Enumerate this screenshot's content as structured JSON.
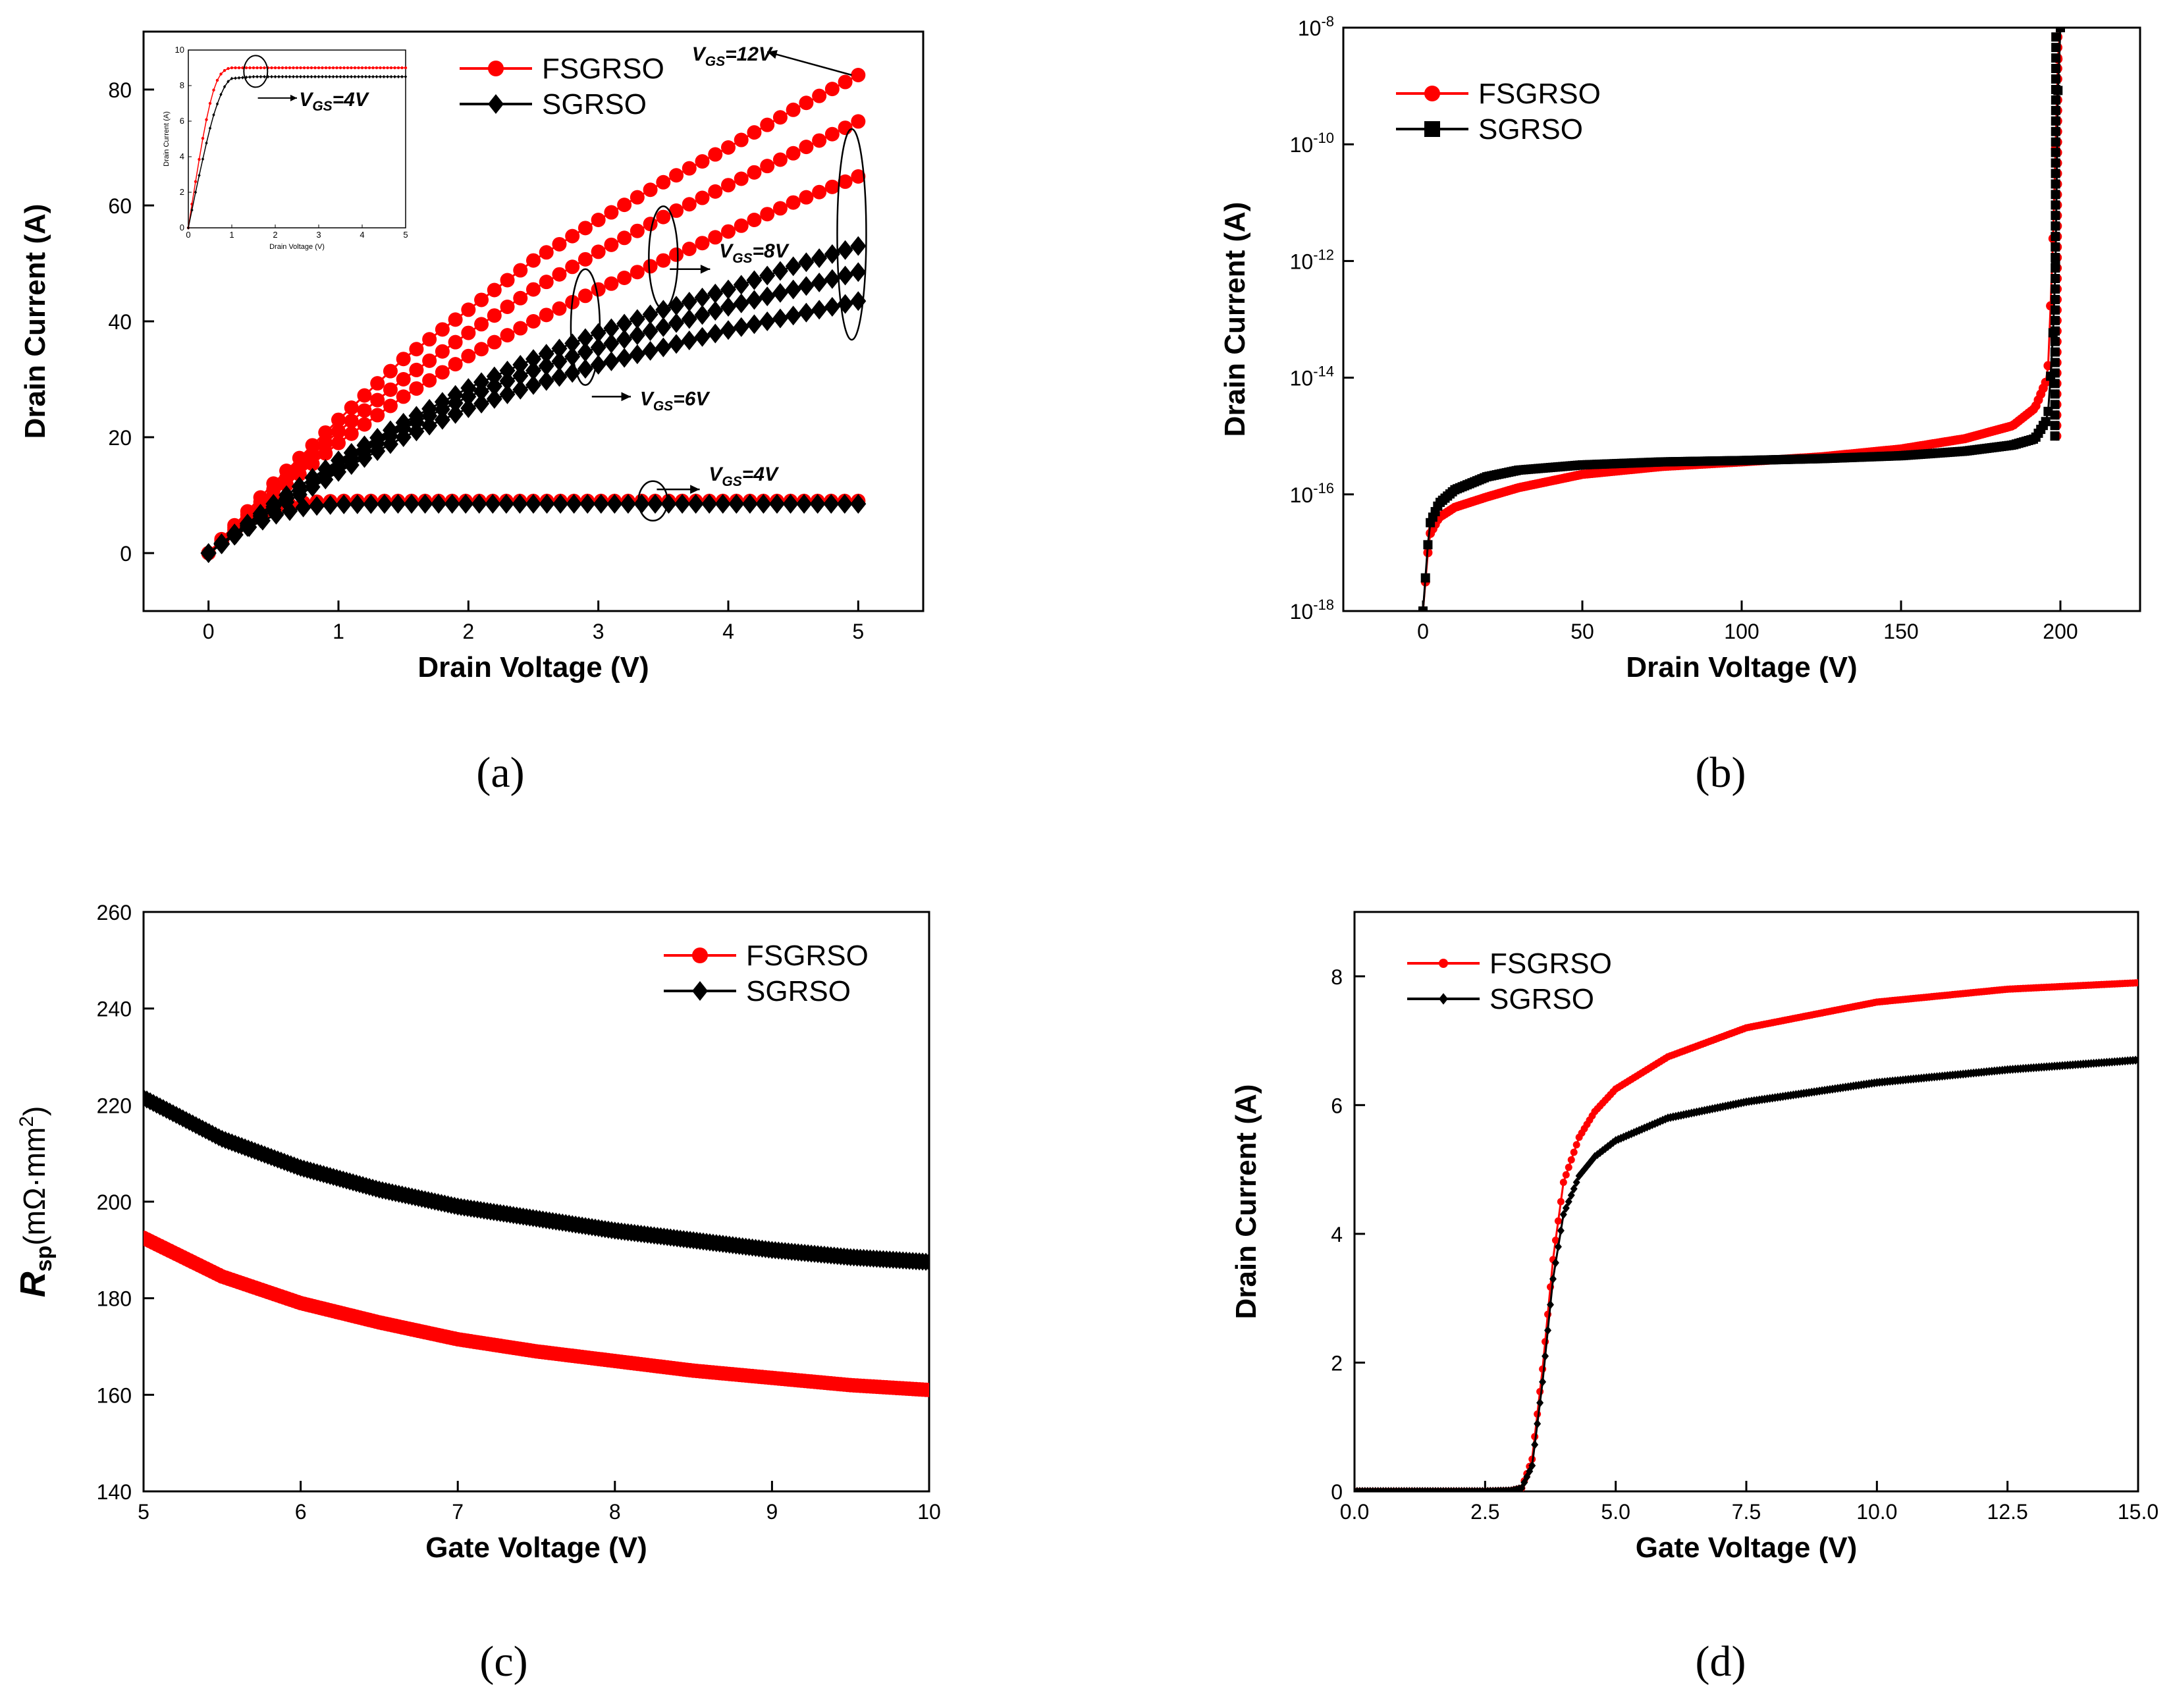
{
  "colors": {
    "fsgrso": "#ff0000",
    "sgrso": "#000000"
  },
  "panel_labels": [
    "(a)",
    "(b)",
    "(c)",
    "(d)"
  ],
  "chart_data": [
    {
      "type": "line",
      "panel": "(a)",
      "xlabel": "Drain Voltage (V)",
      "ylabel": "Drain Current (A)",
      "xlim": [
        -0.5,
        5.5
      ],
      "ylim": [
        -10,
        90
      ],
      "xticks": [
        0,
        1,
        2,
        3,
        4,
        5
      ],
      "yticks": [
        0,
        20,
        40,
        60,
        80
      ],
      "legend": [
        "FSGRSO",
        "SGRSO"
      ],
      "legend_position": "top-center",
      "markers": {
        "FSGRSO": "circle",
        "SGRSO": "diamond"
      },
      "annotations": [
        {
          "main": "V",
          "sub": "GS",
          "rest": "=12V"
        },
        {
          "main": "V",
          "sub": "GS",
          "rest": "=8V"
        },
        {
          "main": "V",
          "sub": "GS",
          "rest": "=6V"
        },
        {
          "main": "V",
          "sub": "GS",
          "rest": "=4V"
        }
      ],
      "series": [
        {
          "name": "FSGRSO",
          "vgs": "12V",
          "x": [
            0,
            0.5,
            1,
            1.5,
            2,
            2.5,
            3,
            3.5,
            4,
            4.5,
            5
          ],
          "y": [
            0,
            12,
            23,
            33.5,
            42,
            50.5,
            57.5,
            64,
            70,
            76.5,
            82.5
          ]
        },
        {
          "name": "FSGRSO",
          "vgs": "8V",
          "x": [
            0,
            0.5,
            1,
            1.5,
            2,
            2.5,
            3,
            3.5,
            4,
            4.5,
            5
          ],
          "y": [
            0,
            11,
            21,
            30,
            38,
            45.5,
            52,
            58,
            63.5,
            69,
            74.5
          ]
        },
        {
          "name": "FSGRSO",
          "vgs": "6V",
          "x": [
            0,
            0.5,
            1,
            1.5,
            2,
            2.5,
            3,
            3.5,
            4,
            4.5,
            5
          ],
          "y": [
            0,
            10,
            19,
            27,
            34,
            40,
            45.5,
            50.5,
            55.5,
            60.5,
            65
          ]
        },
        {
          "name": "FSGRSO",
          "vgs": "4V",
          "x": [
            0,
            0.25,
            0.5,
            0.75,
            1,
            1.5,
            2,
            3,
            4,
            5
          ],
          "y": [
            0,
            4.8,
            7.8,
            8.8,
            9,
            9,
            9,
            9,
            9,
            9
          ]
        },
        {
          "name": "SGRSO",
          "vgs": "12V",
          "x": [
            0,
            0.5,
            1,
            1.5,
            2,
            2.5,
            3,
            3.5,
            4,
            4.5,
            5
          ],
          "y": [
            0,
            8.5,
            16,
            22.5,
            28.5,
            33.5,
            38,
            42,
            45.5,
            49.5,
            53
          ]
        },
        {
          "name": "SGRSO",
          "vgs": "8V",
          "x": [
            0,
            0.5,
            1,
            1.5,
            2,
            2.5,
            3,
            3.5,
            4,
            4.5,
            5
          ],
          "y": [
            0,
            8,
            15,
            21.5,
            27,
            31.5,
            35.5,
            39,
            42.5,
            45.5,
            48.5
          ]
        },
        {
          "name": "SGRSO",
          "vgs": "6V",
          "x": [
            0,
            0.5,
            1,
            1.5,
            2,
            2.5,
            3,
            3.5,
            4,
            4.5,
            5
          ],
          "y": [
            0,
            7.5,
            14,
            20,
            25,
            29,
            32.5,
            35.5,
            38.5,
            41,
            43.5
          ]
        },
        {
          "name": "SGRSO",
          "vgs": "4V",
          "x": [
            0,
            0.25,
            0.5,
            0.75,
            1,
            1.5,
            2,
            3,
            4,
            5
          ],
          "y": [
            0,
            3.8,
            6.5,
            8,
            8.4,
            8.5,
            8.5,
            8.5,
            8.5,
            8.5
          ]
        }
      ],
      "inset": {
        "xlabel": "Drain Voltage (V)",
        "ylabel": "Drain Current (A)",
        "xlim": [
          0,
          5
        ],
        "ylim": [
          0,
          10
        ],
        "xticks": [
          0,
          1,
          2,
          3,
          4,
          5
        ],
        "yticks": [
          0,
          2,
          4,
          6,
          8,
          10
        ],
        "annotation": {
          "main": "V",
          "sub": "GS",
          "rest": "=4V"
        },
        "series": [
          {
            "name": "FSGRSO",
            "x": [
              0,
              0.1,
              0.2,
              0.3,
              0.4,
              0.5,
              0.6,
              0.7,
              0.8,
              0.9,
              1,
              1.5,
              2,
              3,
              4,
              5
            ],
            "y": [
              0,
              1.6,
              3.1,
              4.6,
              5.9,
              7,
              7.9,
              8.5,
              8.8,
              8.95,
              9,
              9,
              9,
              9,
              9,
              9
            ]
          },
          {
            "name": "SGRSO",
            "x": [
              0,
              0.1,
              0.2,
              0.3,
              0.4,
              0.5,
              0.6,
              0.7,
              0.8,
              0.9,
              1,
              1.5,
              2,
              3,
              4,
              5
            ],
            "y": [
              0,
              1.2,
              2.4,
              3.5,
              4.6,
              5.6,
              6.5,
              7.2,
              7.8,
              8.2,
              8.4,
              8.5,
              8.5,
              8.5,
              8.5,
              8.5
            ]
          }
        ]
      }
    },
    {
      "type": "line",
      "panel": "(b)",
      "xlabel": "Drain Voltage (V)",
      "ylabel": "Drain Current (A)",
      "yscale": "log",
      "xlim": [
        -25,
        225
      ],
      "ylim": [
        1e-18,
        1e-08
      ],
      "xticks": [
        0,
        50,
        100,
        150,
        200
      ],
      "ytick_exponents": [
        -18,
        -16,
        -14,
        -12,
        -10,
        -8
      ],
      "legend": [
        "FSGRSO",
        "SGRSO"
      ],
      "legend_position": "top-left",
      "markers": {
        "FSGRSO": "circle",
        "SGRSO": "square"
      },
      "series": [
        {
          "name": "FSGRSO",
          "x": [
            0,
            2,
            5,
            10,
            20,
            30,
            50,
            75,
            100,
            125,
            150,
            170,
            185,
            192,
            196,
            197.5,
            198.5,
            199,
            199.5,
            200
          ],
          "y": [
            1e-18,
            2e-17,
            4e-17,
            6e-17,
            9e-17,
            1.3e-16,
            2.2e-16,
            3e-16,
            3.6e-16,
            4.4e-16,
            6e-16,
            9e-16,
            1.5e-15,
            3e-15,
            1e-14,
            1e-12,
            1e-10,
            1e-09,
            1e-08,
            1e-08
          ]
        },
        {
          "name": "SGRSO",
          "x": [
            0,
            2,
            5,
            10,
            20,
            30,
            50,
            75,
            100,
            125,
            150,
            170,
            185,
            192,
            196,
            197.5,
            198.5,
            199,
            199.5,
            200
          ],
          "y": [
            1e-18,
            3e-17,
            7e-17,
            1.2e-16,
            2e-16,
            2.6e-16,
            3.2e-16,
            3.6e-16,
            3.8e-16,
            4.1e-16,
            4.6e-16,
            5.5e-16,
            7e-16,
            9e-16,
            2e-15,
            3e-14,
            1e-12,
            1e-10,
            1e-08,
            1e-08
          ]
        }
      ]
    },
    {
      "type": "line",
      "panel": "(c)",
      "xlabel": "Gate Voltage (V)",
      "ylabel": {
        "main": "R",
        "sub": "sp",
        "rest": "(mΩ·mm",
        "sup": "2",
        "close": ")"
      },
      "xlim": [
        5,
        10
      ],
      "ylim": [
        140,
        260
      ],
      "xticks": [
        5,
        6,
        7,
        8,
        9,
        10
      ],
      "yticks": [
        140,
        160,
        180,
        200,
        220,
        240,
        260
      ],
      "legend": [
        "FSGRSO",
        "SGRSO"
      ],
      "legend_position": "top-right",
      "markers": {
        "FSGRSO": "circle",
        "SGRSO": "diamond"
      },
      "series": [
        {
          "name": "FSGRSO",
          "x": [
            5,
            5.5,
            6,
            6.5,
            7,
            7.5,
            8,
            8.5,
            9,
            9.5,
            10
          ],
          "y": [
            192.5,
            184.5,
            179,
            175,
            171.5,
            169,
            167,
            165,
            163.5,
            162,
            161
          ]
        },
        {
          "name": "SGRSO",
          "x": [
            5,
            5.5,
            6,
            6.5,
            7,
            7.5,
            8,
            8.5,
            9,
            9.5,
            10
          ],
          "y": [
            221.5,
            213,
            207,
            202.5,
            199,
            196.5,
            194,
            192,
            190,
            188.5,
            187.5
          ]
        }
      ]
    },
    {
      "type": "line",
      "panel": "(d)",
      "xlabel": "Gate Voltage (V)",
      "ylabel": "Drain Current (A)",
      "xlim": [
        0,
        15
      ],
      "ylim": [
        0,
        9
      ],
      "xticks": [
        0.0,
        2.5,
        5.0,
        7.5,
        10.0,
        12.5,
        15.0
      ],
      "xtick_labels": [
        "0.0",
        "2.5",
        "5.0",
        "7.5",
        "10.0",
        "12.5",
        "15.0"
      ],
      "yticks": [
        0,
        2,
        4,
        6,
        8
      ],
      "legend": [
        "FSGRSO",
        "SGRSO"
      ],
      "legend_position": "top-left",
      "markers": {
        "FSGRSO": "circle",
        "SGRSO": "diamond"
      },
      "series": [
        {
          "name": "FSGRSO",
          "x": [
            0,
            2.5,
            3.0,
            3.2,
            3.4,
            3.6,
            3.8,
            4.0,
            4.3,
            4.6,
            5,
            6,
            7.5,
            10,
            12.5,
            15
          ],
          "y": [
            0,
            0,
            0.01,
            0.05,
            0.5,
            1.9,
            3.6,
            4.8,
            5.5,
            5.9,
            6.25,
            6.75,
            7.2,
            7.6,
            7.8,
            7.9
          ]
        },
        {
          "name": "SGRSO",
          "x": [
            0,
            2.5,
            3.0,
            3.2,
            3.4,
            3.6,
            3.8,
            4.0,
            4.3,
            4.6,
            5,
            6,
            7.5,
            10,
            12.5,
            15
          ],
          "y": [
            0,
            0,
            0.01,
            0.05,
            0.4,
            1.7,
            3.3,
            4.3,
            4.9,
            5.2,
            5.45,
            5.8,
            6.05,
            6.35,
            6.55,
            6.7
          ]
        }
      ]
    }
  ]
}
